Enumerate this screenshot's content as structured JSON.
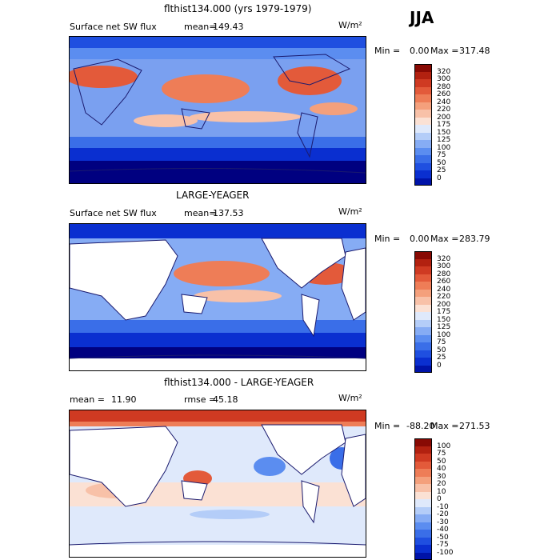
{
  "season": "JJA",
  "colors": {
    "land": "#ffffff",
    "coast": "#1a1a6e",
    "pos_scale": [
      "#000080",
      "#0013a8",
      "#0a2fd0",
      "#1f4fe0",
      "#3a6ee8",
      "#5b8df0",
      "#86acf4",
      "#b4cdf8",
      "#dfe9fb",
      "#fbe1d4",
      "#f8c1a8",
      "#f4a07c",
      "#ee7d57",
      "#e35a3a",
      "#cf3a22",
      "#b22110",
      "#880a04"
    ],
    "diff_scale": [
      "#000080",
      "#0013a8",
      "#0a2fd0",
      "#1f4fe0",
      "#3a6ee8",
      "#5b8df0",
      "#86acf4",
      "#b4cdf8",
      "#dfe9fb",
      "#fbe1d4",
      "#f8c1a8",
      "#f4a07c",
      "#ee7d57",
      "#e35a3a",
      "#cf3a22",
      "#b22110",
      "#880a04"
    ]
  },
  "panels": [
    {
      "title": "flthist134.000 (yrs 1979-1979)",
      "field_label": "Surface net SW flux",
      "stat_label": "mean=",
      "stat_value": "149.43",
      "units": "W/m²",
      "min_label": "Min =",
      "min_value": "0.00",
      "max_label": "Max =",
      "max_value": "317.48",
      "levels": [
        "320",
        "300",
        "280",
        "260",
        "240",
        "220",
        "200",
        "175",
        "150",
        "125",
        "100",
        "75",
        "50",
        "25",
        "0"
      ]
    },
    {
      "title": "LARGE-YEAGER",
      "field_label": "Surface net SW flux",
      "stat_label": "mean=",
      "stat_value": "137.53",
      "units": "W/m²",
      "min_label": "Min =",
      "min_value": "0.00",
      "max_label": "Max =",
      "max_value": "283.79",
      "levels": [
        "320",
        "300",
        "280",
        "260",
        "240",
        "220",
        "200",
        "175",
        "150",
        "125",
        "100",
        "75",
        "50",
        "25",
        "0"
      ]
    },
    {
      "title": "flthist134.000 - LARGE-YEAGER",
      "field_label": "mean =",
      "stat_label": "rmse =",
      "mean_value": "11.90",
      "stat_value": "45.18",
      "units": "W/m²",
      "min_label": "Min =",
      "min_value": "-88.20",
      "max_label": "Max =",
      "max_value": "271.53",
      "levels": [
        "100",
        "75",
        "50",
        "40",
        "30",
        "20",
        "10",
        "0",
        "-10",
        "-20",
        "-30",
        "-40",
        "-50",
        "-75",
        "-100"
      ]
    }
  ]
}
